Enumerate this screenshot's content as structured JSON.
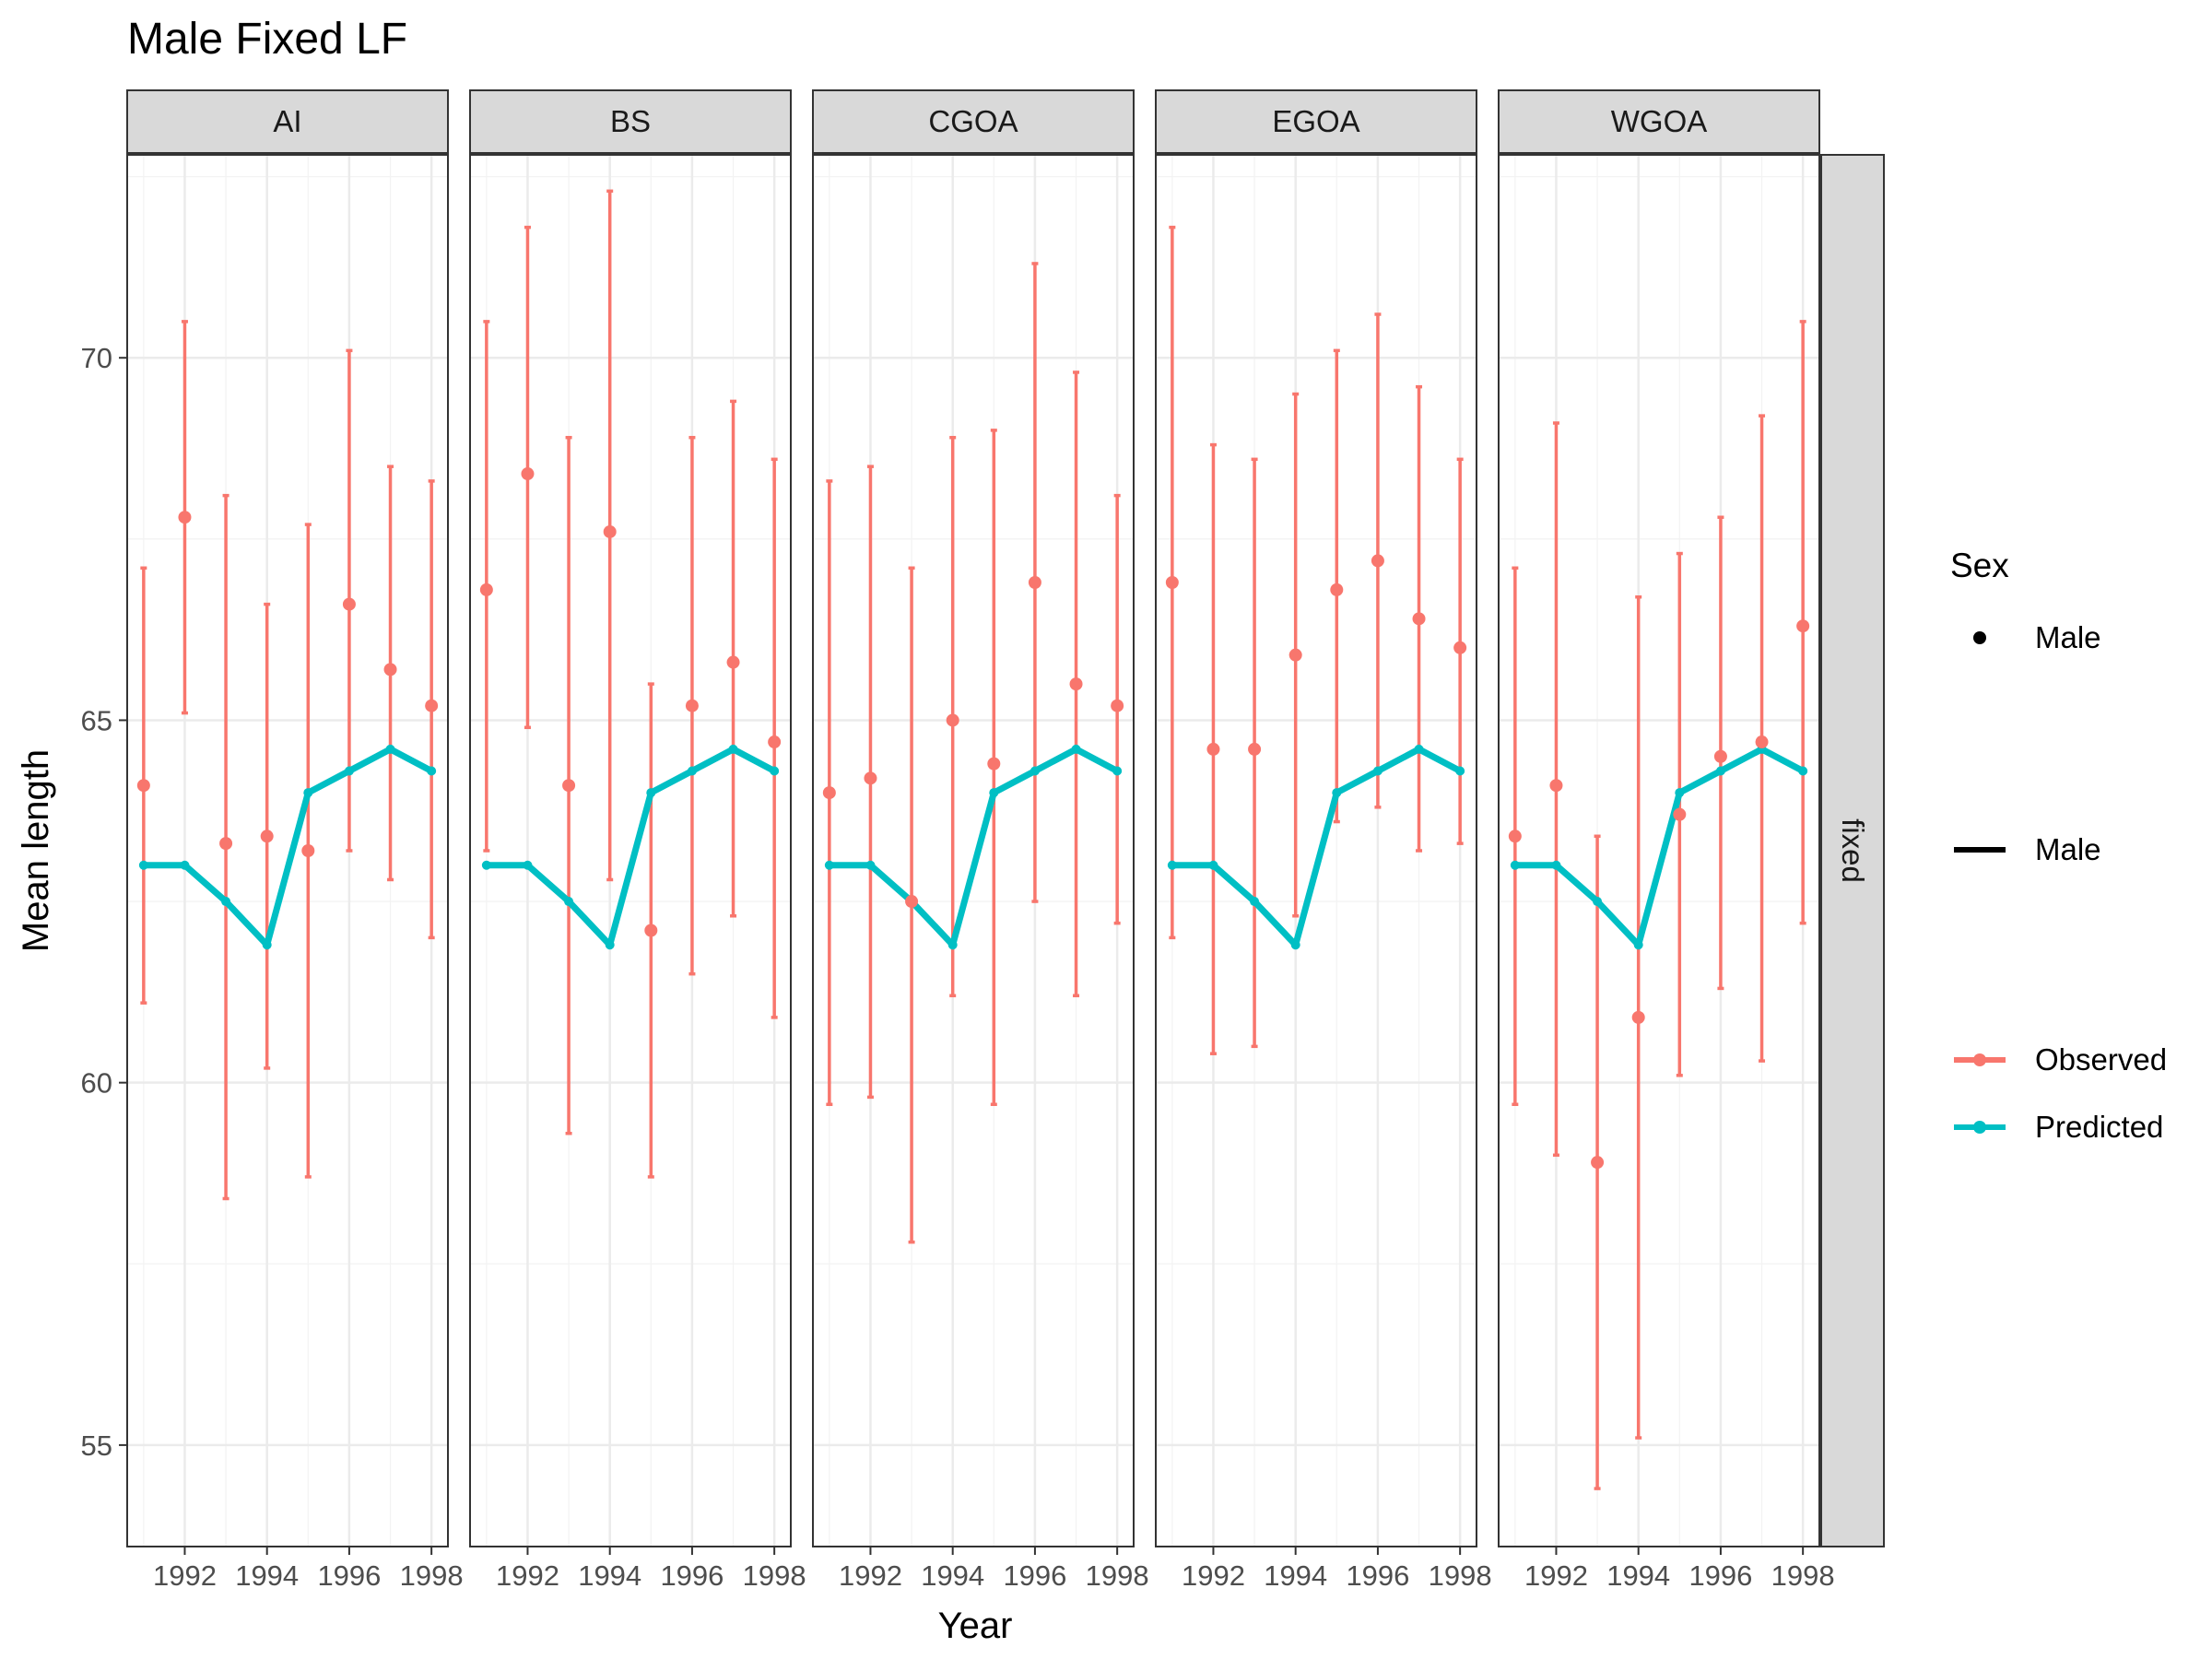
{
  "chart_data": {
    "type": "line",
    "title": "Male Fixed LF",
    "xlabel": "Year",
    "ylabel": "Mean length",
    "xlim": [
      1990.6,
      1998.4
    ],
    "ylim": [
      53.6,
      72.8
    ],
    "x_ticks": [
      1992,
      1994,
      1996,
      1998
    ],
    "y_ticks": [
      55,
      60,
      65,
      70
    ],
    "grid": true,
    "row_facet": "fixed",
    "panels": [
      {
        "name": "AI",
        "observed": [
          {
            "x": 1991,
            "y": 64.1,
            "lo": 61.1,
            "hi": 67.1
          },
          {
            "x": 1992,
            "y": 67.8,
            "lo": 65.1,
            "hi": 70.5
          },
          {
            "x": 1993,
            "y": 63.3,
            "lo": 58.4,
            "hi": 68.1
          },
          {
            "x": 1994,
            "y": 63.4,
            "lo": 60.2,
            "hi": 66.6
          },
          {
            "x": 1995,
            "y": 63.2,
            "lo": 58.7,
            "hi": 67.7
          },
          {
            "x": 1996,
            "y": 66.6,
            "lo": 63.2,
            "hi": 70.1
          },
          {
            "x": 1997,
            "y": 65.7,
            "lo": 62.8,
            "hi": 68.5
          },
          {
            "x": 1998,
            "y": 65.2,
            "lo": 62.0,
            "hi": 68.3
          }
        ]
      },
      {
        "name": "BS",
        "observed": [
          {
            "x": 1991,
            "y": 66.8,
            "lo": 63.2,
            "hi": 70.5
          },
          {
            "x": 1992,
            "y": 68.4,
            "lo": 64.9,
            "hi": 71.8
          },
          {
            "x": 1993,
            "y": 64.1,
            "lo": 59.3,
            "hi": 68.9
          },
          {
            "x": 1994,
            "y": 67.6,
            "lo": 62.8,
            "hi": 72.3
          },
          {
            "x": 1995,
            "y": 62.1,
            "lo": 58.7,
            "hi": 65.5
          },
          {
            "x": 1996,
            "y": 65.2,
            "lo": 61.5,
            "hi": 68.9
          },
          {
            "x": 1997,
            "y": 65.8,
            "lo": 62.3,
            "hi": 69.4
          },
          {
            "x": 1998,
            "y": 64.7,
            "lo": 60.9,
            "hi": 68.6
          }
        ]
      },
      {
        "name": "CGOA",
        "observed": [
          {
            "x": 1991,
            "y": 64.0,
            "lo": 59.7,
            "hi": 68.3
          },
          {
            "x": 1992,
            "y": 64.2,
            "lo": 59.8,
            "hi": 68.5
          },
          {
            "x": 1993,
            "y": 62.5,
            "lo": 57.8,
            "hi": 67.1
          },
          {
            "x": 1994,
            "y": 65.0,
            "lo": 61.2,
            "hi": 68.9
          },
          {
            "x": 1995,
            "y": 64.4,
            "lo": 59.7,
            "hi": 69.0
          },
          {
            "x": 1996,
            "y": 66.9,
            "lo": 62.5,
            "hi": 71.3
          },
          {
            "x": 1997,
            "y": 65.5,
            "lo": 61.2,
            "hi": 69.8
          },
          {
            "x": 1998,
            "y": 65.2,
            "lo": 62.2,
            "hi": 68.1
          }
        ]
      },
      {
        "name": "EGOA",
        "observed": [
          {
            "x": 1991,
            "y": 66.9,
            "lo": 62.0,
            "hi": 71.8
          },
          {
            "x": 1992,
            "y": 64.6,
            "lo": 60.4,
            "hi": 68.8
          },
          {
            "x": 1993,
            "y": 64.6,
            "lo": 60.5,
            "hi": 68.6
          },
          {
            "x": 1994,
            "y": 65.9,
            "lo": 62.3,
            "hi": 69.5
          },
          {
            "x": 1995,
            "y": 66.8,
            "lo": 63.6,
            "hi": 70.1
          },
          {
            "x": 1996,
            "y": 67.2,
            "lo": 63.8,
            "hi": 70.6
          },
          {
            "x": 1997,
            "y": 66.4,
            "lo": 63.2,
            "hi": 69.6
          },
          {
            "x": 1998,
            "y": 66.0,
            "lo": 63.3,
            "hi": 68.6
          }
        ]
      },
      {
        "name": "WGOA",
        "observed": [
          {
            "x": 1991,
            "y": 63.4,
            "lo": 59.7,
            "hi": 67.1
          },
          {
            "x": 1992,
            "y": 64.1,
            "lo": 59.0,
            "hi": 69.1
          },
          {
            "x": 1993,
            "y": 58.9,
            "lo": 54.4,
            "hi": 63.4
          },
          {
            "x": 1994,
            "y": 60.9,
            "lo": 55.1,
            "hi": 66.7
          },
          {
            "x": 1995,
            "y": 63.7,
            "lo": 60.1,
            "hi": 67.3
          },
          {
            "x": 1996,
            "y": 64.5,
            "lo": 61.3,
            "hi": 67.8
          },
          {
            "x": 1997,
            "y": 64.7,
            "lo": 60.3,
            "hi": 69.2
          },
          {
            "x": 1998,
            "y": 66.3,
            "lo": 62.2,
            "hi": 70.5
          }
        ]
      }
    ],
    "predicted": [
      {
        "x": 1991,
        "y": 63.0
      },
      {
        "x": 1992,
        "y": 63.0
      },
      {
        "x": 1993,
        "y": 62.5
      },
      {
        "x": 1994,
        "y": 61.9
      },
      {
        "x": 1995,
        "y": 64.0
      },
      {
        "x": 1996,
        "y": 64.3
      },
      {
        "x": 1997,
        "y": 64.6
      },
      {
        "x": 1998,
        "y": 64.3
      }
    ],
    "legend": {
      "position": "right",
      "sex_title": "Sex",
      "sex_point_label": "Male",
      "sex_line_label": "Male",
      "series": [
        {
          "name": "Observed",
          "color": "#F8766D"
        },
        {
          "name": "Predicted",
          "color": "#00BFC4"
        }
      ]
    }
  }
}
